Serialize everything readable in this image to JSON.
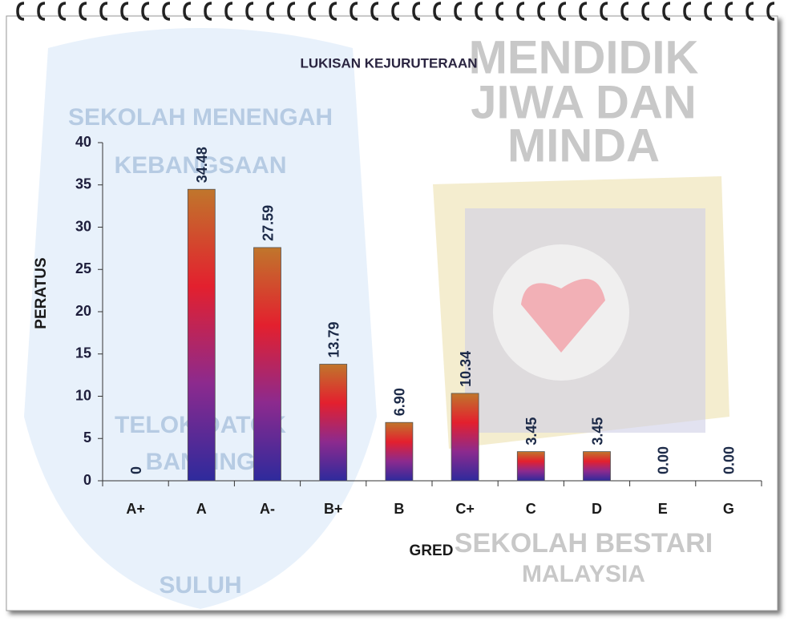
{
  "chart_data": {
    "type": "bar",
    "title": "LUKISAN  KEJURUTERAAN",
    "x_label": "GRED",
    "y_label": "PERATUS",
    "categories": [
      "A+",
      "A",
      "A-",
      "B+",
      "B",
      "C+",
      "C",
      "D",
      "E",
      "G"
    ],
    "values": [
      0,
      34.48,
      27.59,
      13.79,
      6.9,
      10.34,
      3.45,
      3.45,
      0,
      0
    ],
    "value_labels": [
      "0",
      "34.48",
      "27.59",
      "13.79",
      "6.90",
      "10.34",
      "3.45",
      "3.45",
      "0.00",
      "0.00"
    ],
    "gradient_colors": [
      "#c0762c",
      "#e3202e",
      "#8c2a8e",
      "#2e2a9c"
    ],
    "ylim": [
      0,
      40
    ],
    "yticks": [
      0,
      5,
      10,
      15,
      20,
      25,
      30,
      35,
      40
    ]
  },
  "watermark": {
    "motto": [
      "MENDIDIK",
      "JIWA DAN",
      "MINDA"
    ],
    "footer": [
      "SEKOLAH BESTARI",
      "MALAYSIA"
    ],
    "crest": [
      "SEKOLAH MENENGAH",
      "KEBANGSAAN",
      "TELOK DATOK",
      "BANTING",
      "SULUH"
    ]
  }
}
